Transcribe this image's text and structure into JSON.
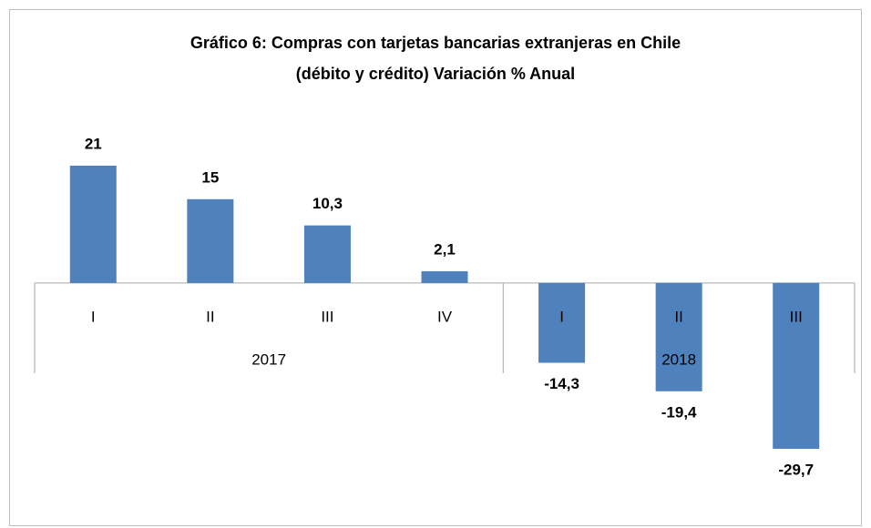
{
  "chart_data": {
    "type": "bar",
    "title_lines": [
      "Gráfico 6: Compras con tarjetas bancarias extranjeras en Chile",
      "(débito y crédito) Variación % Anual"
    ],
    "category_groups": [
      {
        "label": "2017",
        "categories": [
          "I",
          "II",
          "III",
          "IV"
        ]
      },
      {
        "label": "2018",
        "categories": [
          "I",
          "II",
          "III"
        ]
      }
    ],
    "values": [
      21,
      15,
      10.3,
      2.1,
      -14.3,
      -19.4,
      -29.7
    ],
    "value_labels": [
      "21",
      "15",
      "10,3",
      "2,1",
      "-14,3",
      "-19,4",
      "-29,7"
    ],
    "color": "#4f81bd"
  }
}
